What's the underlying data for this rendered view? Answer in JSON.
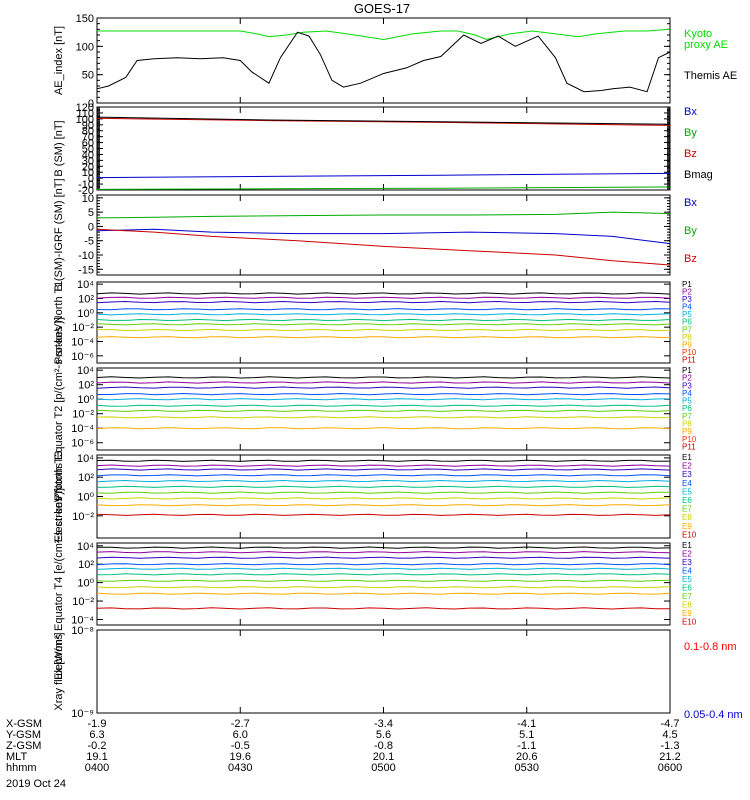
{
  "title": "GOES-17",
  "chart_data": [
    {
      "id": "ae",
      "type": "line",
      "ylabel": "AE_index [nT]",
      "yticks": [
        0,
        50,
        100,
        150
      ],
      "ylim": [
        0,
        150
      ],
      "scale": "linear",
      "series": [
        {
          "name": "Kyoto proxy AE",
          "color": "#00dd00",
          "x": [
            0,
            0.05,
            0.1,
            0.15,
            0.2,
            0.25,
            0.28,
            0.3,
            0.33,
            0.36,
            0.4,
            0.45,
            0.5,
            0.55,
            0.6,
            0.63,
            0.66,
            0.68,
            0.72,
            0.76,
            0.8,
            0.84,
            0.87,
            0.92,
            0.96,
            1.0
          ],
          "y": [
            127,
            127,
            127,
            127,
            127,
            127,
            122,
            117,
            120,
            125,
            127,
            120,
            112,
            122,
            127,
            127,
            120,
            112,
            122,
            127,
            122,
            117,
            122,
            127,
            127,
            130
          ]
        },
        {
          "name": "Themis AE",
          "color": "#000000",
          "x": [
            0,
            0.02,
            0.05,
            0.07,
            0.1,
            0.14,
            0.18,
            0.22,
            0.25,
            0.27,
            0.3,
            0.32,
            0.35,
            0.37,
            0.39,
            0.41,
            0.43,
            0.46,
            0.5,
            0.54,
            0.57,
            0.6,
            0.64,
            0.67,
            0.7,
            0.73,
            0.77,
            0.8,
            0.82,
            0.85,
            0.88,
            0.9,
            0.93,
            0.96,
            0.98,
            1.0
          ],
          "y": [
            25,
            30,
            45,
            75,
            78,
            80,
            78,
            80,
            75,
            55,
            35,
            80,
            125,
            118,
            85,
            40,
            28,
            35,
            52,
            62,
            75,
            82,
            120,
            105,
            118,
            100,
            118,
            80,
            35,
            20,
            22,
            25,
            28,
            20,
            80,
            90
          ]
        }
      ]
    },
    {
      "id": "bsm",
      "type": "line",
      "ylabel": "B (SM) [nT]",
      "yticks": [
        -20,
        -10,
        0,
        10,
        20,
        30,
        40,
        50,
        60,
        70,
        80,
        90,
        100,
        110,
        120
      ],
      "ylim": [
        -20,
        120
      ],
      "scale": "linear",
      "series": [
        {
          "name": "Bx",
          "color": "#0000cc",
          "x": [
            0,
            0.3,
            0.6,
            1.0
          ],
          "y": [
            1,
            3,
            5,
            8
          ]
        },
        {
          "name": "By",
          "color": "#00aa00",
          "x": [
            0,
            0.3,
            0.6,
            1.0
          ],
          "y": [
            -19,
            -18,
            -17,
            -15
          ]
        },
        {
          "name": "Bz",
          "color": "#cc0000",
          "x": [
            0,
            0.3,
            0.6,
            1.0
          ],
          "y": [
            101,
            97,
            94,
            89
          ]
        },
        {
          "name": "Bmag",
          "color": "#000000",
          "x": [
            0,
            0.3,
            0.6,
            1.0
          ],
          "y": [
            103,
            98,
            95,
            91
          ]
        }
      ]
    },
    {
      "id": "bdiff",
      "type": "line",
      "ylabel": "B (SM)-IGRF (SM) [nT]",
      "yticks": [
        -15,
        -10,
        -5,
        0,
        5,
        10
      ],
      "ylim": [
        -17,
        11
      ],
      "scale": "linear",
      "series": [
        {
          "name": "Bx",
          "color": "#0000cc",
          "x": [
            0,
            0.1,
            0.2,
            0.35,
            0.5,
            0.65,
            0.8,
            0.9,
            1.0
          ],
          "y": [
            -1.5,
            -1.0,
            -2,
            -2.5,
            -2.5,
            -2.0,
            -2.5,
            -3.5,
            -6
          ]
        },
        {
          "name": "By",
          "color": "#00aa00",
          "x": [
            0,
            0.1,
            0.2,
            0.35,
            0.5,
            0.65,
            0.8,
            0.9,
            1.0
          ],
          "y": [
            3,
            3.2,
            3.5,
            3.8,
            4,
            4,
            4.2,
            5,
            4.5
          ]
        },
        {
          "name": "Bz",
          "color": "#cc0000",
          "x": [
            0,
            0.1,
            0.2,
            0.35,
            0.5,
            0.65,
            0.8,
            0.9,
            1.0
          ],
          "y": [
            -1,
            -2,
            -3.5,
            -5,
            -7,
            -8.5,
            -10,
            -12,
            -13.5
          ]
        }
      ]
    },
    {
      "id": "p1",
      "type": "line",
      "ylabel": "Protons North T1",
      "yticks": [
        -6,
        -4,
        -2,
        0,
        2,
        4
      ],
      "ylim": [
        -7,
        4.3
      ],
      "scale": "log",
      "ticklabels": [
        "10⁻⁶",
        "10⁻⁴",
        "10⁻²",
        "10⁰",
        "10²",
        "10⁴"
      ],
      "series": [
        {
          "name": "P1",
          "color": "#000000",
          "y": 2.7
        },
        {
          "name": "P2",
          "color": "#9000a0",
          "y": 2.1
        },
        {
          "name": "P3",
          "color": "#3000c0",
          "y": 1.5
        },
        {
          "name": "P4",
          "color": "#0050ff",
          "y": 0.5
        },
        {
          "name": "P5",
          "color": "#00b0e0",
          "y": -0.2
        },
        {
          "name": "P6",
          "color": "#00c080",
          "y": -1.0
        },
        {
          "name": "P7",
          "color": "#60d000",
          "y": -1.6
        },
        {
          "name": "P8",
          "color": "#d0d000",
          "y": -2.4
        },
        {
          "name": "P9",
          "color": "#ffaa00",
          "y": -3.4
        },
        {
          "name": "P10",
          "color": "#ff3000",
          "y": null
        },
        {
          "name": "P11",
          "color": "#c00000",
          "y": null
        }
      ]
    },
    {
      "id": "p2",
      "type": "line",
      "ylabel": "Protons Equator T2 [p/(cm²-s-sr-keV)]",
      "yticks": [
        -6,
        -4,
        -2,
        0,
        2,
        4
      ],
      "ylim": [
        -7,
        4.3
      ],
      "scale": "log",
      "ticklabels": [
        "10⁻⁶",
        "10⁻⁴",
        "10⁻²",
        "10⁰",
        "10²",
        "10⁴"
      ],
      "series": [
        {
          "name": "P1",
          "color": "#000000",
          "y": 3.0
        },
        {
          "name": "P2",
          "color": "#9000a0",
          "y": 2.3
        },
        {
          "name": "P3",
          "color": "#3000c0",
          "y": 1.6
        },
        {
          "name": "P4",
          "color": "#0050ff",
          "y": 0.7
        },
        {
          "name": "P5",
          "color": "#00b0e0",
          "y": 0.0
        },
        {
          "name": "P6",
          "color": "#00c080",
          "y": -0.9
        },
        {
          "name": "P7",
          "color": "#60d000",
          "y": -1.6
        },
        {
          "name": "P8",
          "color": "#d0d000",
          "y": -2.5
        },
        {
          "name": "P9",
          "color": "#ffaa00",
          "y": -4.0
        },
        {
          "name": "P10",
          "color": "#ff3000",
          "y": null
        },
        {
          "name": "P11",
          "color": "#c00000",
          "y": null
        }
      ]
    },
    {
      "id": "e1",
      "type": "line",
      "ylabel": "Electrons North T3",
      "yticks": [
        -2,
        0,
        2,
        4
      ],
      "ylim": [
        -4.3,
        4.3
      ],
      "scale": "log",
      "ticklabels": [
        "10⁻²",
        "10⁰",
        "10²",
        "10⁴"
      ],
      "series": [
        {
          "name": "E1",
          "color": "#000000",
          "y": 3.7
        },
        {
          "name": "E2",
          "color": "#9000a0",
          "y": 3.2
        },
        {
          "name": "E3",
          "color": "#3000c0",
          "y": 2.8
        },
        {
          "name": "E4",
          "color": "#0050ff",
          "y": 2.2
        },
        {
          "name": "E5",
          "color": "#00b0e0",
          "y": 1.6
        },
        {
          "name": "E6",
          "color": "#00c080",
          "y": 1.0
        },
        {
          "name": "E7",
          "color": "#60d000",
          "y": 0.4
        },
        {
          "name": "E8",
          "color": "#d0d000",
          "y": -0.2
        },
        {
          "name": "E9",
          "color": "#ffaa00",
          "y": -0.9
        },
        {
          "name": "E10",
          "color": "#cc0000",
          "y": -1.9
        }
      ]
    },
    {
      "id": "e2",
      "type": "line",
      "ylabel": "Electrons Equator T4 [e/(cm²-s-sr-keV)]",
      "yticks": [
        -4,
        -2,
        0,
        2,
        4
      ],
      "ylim": [
        -4.6,
        4.3
      ],
      "scale": "log",
      "ticklabels": [
        "10⁻⁴",
        "10⁻²",
        "10⁰",
        "10²",
        "10⁴"
      ],
      "series": [
        {
          "name": "E1",
          "color": "#000000",
          "y": 3.8
        },
        {
          "name": "E2",
          "color": "#9000a0",
          "y": 3.3
        },
        {
          "name": "E3",
          "color": "#3000c0",
          "y": 2.7
        },
        {
          "name": "E4",
          "color": "#0050ff",
          "y": 2.0
        },
        {
          "name": "E5",
          "color": "#00b0e0",
          "y": 1.5
        },
        {
          "name": "E6",
          "color": "#00c080",
          "y": 0.9
        },
        {
          "name": "E7",
          "color": "#60d000",
          "y": 0.2
        },
        {
          "name": "E8",
          "color": "#d0d000",
          "y": -0.5
        },
        {
          "name": "E9",
          "color": "#ffaa00",
          "y": -1.2
        },
        {
          "name": "E10",
          "color": "#cc0000",
          "y": -2.8
        }
      ]
    },
    {
      "id": "xray",
      "type": "line",
      "ylabel": "Xray flux [W/m²]",
      "yticks": [
        -9,
        -8
      ],
      "ylim": [
        -9,
        -8
      ],
      "scale": "log",
      "ticklabels": [
        "10⁻⁹",
        "10⁻⁸"
      ],
      "series": [
        {
          "name": "0.1-0.8 nm",
          "color": "#ff0000"
        },
        {
          "name": "0.05-0.4 nm",
          "color": "#0000cc"
        }
      ]
    }
  ],
  "panel_labels": {
    "ae": [
      {
        "text": "Kyoto",
        "color": "#00dd00"
      },
      {
        "text": "proxy AE",
        "color": "#00dd00"
      },
      {
        "text": "Themis AE",
        "color": "#000000"
      }
    ],
    "bsm": [
      {
        "text": "Bx",
        "color": "#0000cc"
      },
      {
        "text": "By",
        "color": "#00aa00"
      },
      {
        "text": "Bz",
        "color": "#cc0000"
      },
      {
        "text": "Bmag",
        "color": "#000000"
      }
    ],
    "bdiff": [
      {
        "text": "Bx",
        "color": "#0000cc"
      },
      {
        "text": "By",
        "color": "#00aa00"
      },
      {
        "text": "Bz",
        "color": "#cc0000"
      }
    ],
    "xray": [
      {
        "text": "0.1-0.8 nm",
        "color": "#ff0000"
      },
      {
        "text": "0.05-0.4 nm",
        "color": "#0000cc"
      }
    ]
  },
  "xaxis": {
    "rows": [
      {
        "label": "X-GSM",
        "values": [
          "-1.9",
          "-2.7",
          "-3.4",
          "-4.1",
          "-4.7"
        ]
      },
      {
        "label": "Y-GSM",
        "values": [
          "6.3",
          "6.0",
          "5.6",
          "5.1",
          "4.5"
        ]
      },
      {
        "label": "Z-GSM",
        "values": [
          "-0.2",
          "-0.5",
          "-0.8",
          "-1.1",
          "-1.3"
        ]
      },
      {
        "label": "MLT",
        "values": [
          "19.1",
          "19.6",
          "20.1",
          "20.6",
          "21.2"
        ]
      },
      {
        "label": "hhmm",
        "values": [
          "0400",
          "0430",
          "0500",
          "0530",
          "0600"
        ]
      }
    ],
    "date": "2019 Oct 24"
  }
}
